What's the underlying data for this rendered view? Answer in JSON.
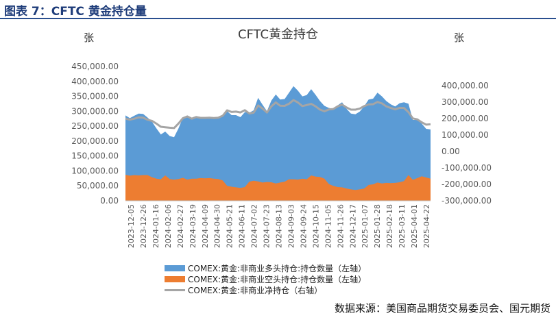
{
  "figure_title": "图表 7：CFTC 黄金持仓量",
  "unit_left": "张",
  "unit_right": "张",
  "source": "数据来源：美国商品期货交易委员会、国元期货",
  "colors": {
    "long": "#5b9bd5",
    "short": "#ed7d31",
    "net": "#a5a5a5",
    "title_rule": "#2a4f8f"
  },
  "chart_data": {
    "type": "area",
    "title": "CFTC黄金持仓",
    "left_axis": {
      "min": 0,
      "max": 450000,
      "step": 50000,
      "tick_labels": [
        "0.00",
        "50,000.00",
        "100,000.00",
        "150,000.00",
        "200,000.00",
        "250,000.00",
        "300,000.00",
        "350,000.00",
        "400,000.00",
        "450,000.00"
      ]
    },
    "right_axis": {
      "min": -300000,
      "max": 400000,
      "step": 100000,
      "tick_labels": [
        "-300,000.00",
        "-200,000.00",
        "-100,000.00",
        "0.00",
        "100,000.00",
        "200,000.00",
        "300,000.00",
        "400,000.00"
      ]
    },
    "x_tick_labels": [
      "2023-12-05",
      "2023-12-26",
      "2024-01-16",
      "2024-02-06",
      "2024-02-27",
      "2024-03-19",
      "2024-04-09",
      "2024-04-30",
      "2024-05-21",
      "2024-06-11",
      "2024-07-02",
      "2024-07-23",
      "2024-08-13",
      "2024-09-03",
      "2024-09-24",
      "2024-10-15",
      "2024-11-05",
      "2024-11-26",
      "2024-12-17",
      "2025-01-07",
      "2025-01-28",
      "2025-02-18",
      "2025-03-11",
      "2025-04-01",
      "2025-04-22"
    ],
    "series": [
      {
        "name": "COMEX:黄金:非商业多头持仓:持仓数量（左轴）",
        "axis": "left",
        "kind": "area",
        "values": [
          286000,
          277000,
          285000,
          292000,
          291000,
          279000,
          265000,
          243000,
          222000,
          232000,
          217000,
          213000,
          243000,
          279000,
          284000,
          273000,
          283000,
          280000,
          279000,
          281000,
          277000,
          278000,
          285000,
          300000,
          287000,
          287000,
          280000,
          297000,
          295000,
          303000,
          345000,
          322000,
          300000,
          336000,
          356000,
          339000,
          341000,
          362000,
          384000,
          369000,
          350000,
          354000,
          374000,
          355000,
          334000,
          318000,
          311000,
          308000,
          320000,
          330000,
          308000,
          292000,
          290000,
          299000,
          317000,
          339000,
          342000,
          362000,
          350000,
          334000,
          323000,
          316000,
          327000,
          330000,
          325000,
          271000,
          271000,
          259000,
          241000,
          239000
        ]
      },
      {
        "name": "COMEX:黄金:非商业空头持仓:持仓数量（左轴）",
        "axis": "left",
        "kind": "area",
        "values": [
          87000,
          84000,
          86000,
          85000,
          86000,
          86000,
          79000,
          74000,
          72000,
          85000,
          73000,
          71000,
          73000,
          77000,
          71000,
          74000,
          74000,
          76000,
          75000,
          76000,
          74000,
          73000,
          68000,
          50000,
          47000,
          45000,
          43000,
          46000,
          64000,
          67000,
          65000,
          61000,
          63000,
          62000,
          58000,
          61000,
          64000,
          72000,
          72000,
          71000,
          74000,
          72000,
          85000,
          81000,
          80000,
          74000,
          56000,
          50000,
          46000,
          45000,
          41000,
          38000,
          36000,
          38000,
          41000,
          53000,
          55000,
          61000,
          58000,
          60000,
          59000,
          60000,
          62000,
          66000,
          86000,
          70000,
          76000,
          82000,
          78000,
          74000
        ]
      },
      {
        "name": "COMEX:黄金:非商业净持仓（右轴）",
        "axis": "right",
        "kind": "line",
        "values": [
          199000,
          193000,
          199000,
          207000,
          205000,
          193000,
          186000,
          169000,
          150000,
          147000,
          144000,
          142000,
          170000,
          202000,
          213000,
          199000,
          209000,
          204000,
          204000,
          205000,
          203000,
          205000,
          217000,
          250000,
          240000,
          242000,
          237000,
          251000,
          231000,
          236000,
          280000,
          261000,
          237000,
          274000,
          298000,
          278000,
          277000,
          290000,
          312000,
          298000,
          276000,
          282000,
          289000,
          274000,
          254000,
          244000,
          255000,
          258000,
          274000,
          285000,
          267000,
          254000,
          254000,
          261000,
          276000,
          286000,
          287000,
          301000,
          292000,
          274000,
          264000,
          256000,
          265000,
          264000,
          239000,
          201000,
          195000,
          177000,
          163000,
          165000
        ]
      }
    ],
    "grid": false,
    "legend_position": "bottom-left"
  }
}
